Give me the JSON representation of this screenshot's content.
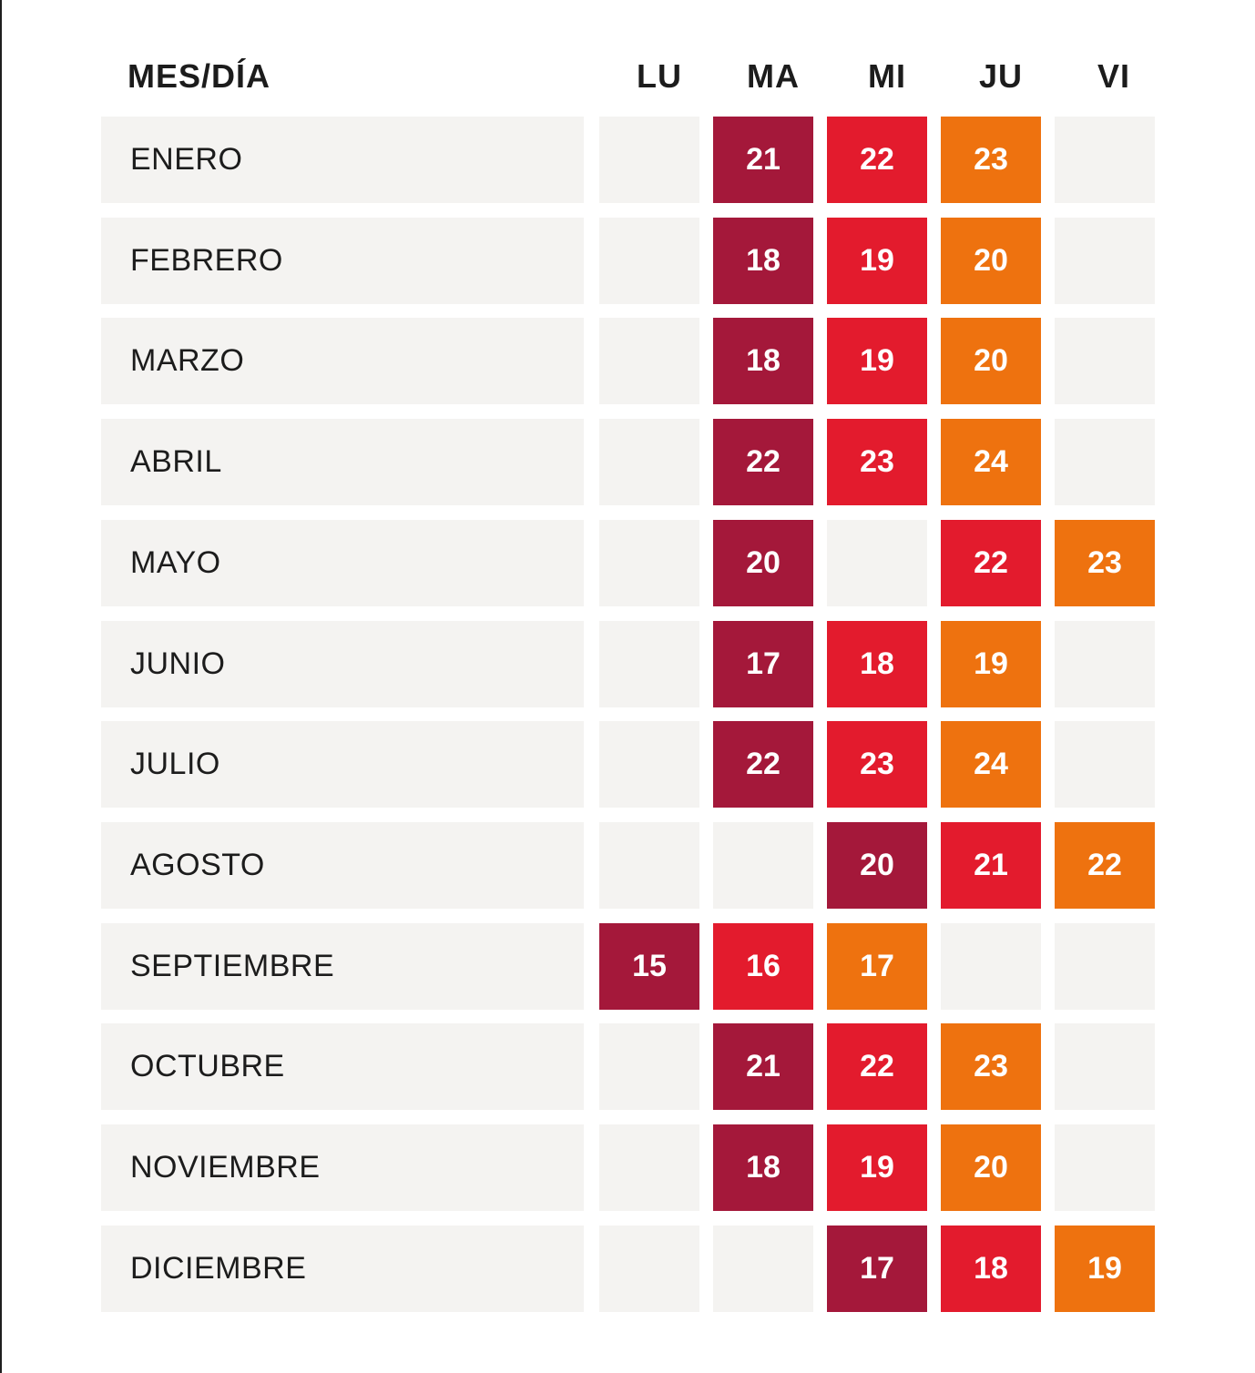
{
  "header": {
    "month_label": "MES/DÍA",
    "days": [
      "LU",
      "MA",
      "MI",
      "JU",
      "VI"
    ]
  },
  "colors": {
    "cell_background": "#f4f3f1",
    "first_day": "#a4183a",
    "second_day": "#e31b2d",
    "third_day": "#ee720f",
    "text_dark": "#1c1c1c"
  },
  "rows": [
    {
      "month": "ENERO",
      "cells": [
        {
          "v": ""
        },
        {
          "v": "21",
          "c": "dark"
        },
        {
          "v": "22",
          "c": "red"
        },
        {
          "v": "23",
          "c": "orange"
        },
        {
          "v": ""
        }
      ]
    },
    {
      "month": "FEBRERO",
      "cells": [
        {
          "v": ""
        },
        {
          "v": "18",
          "c": "dark"
        },
        {
          "v": "19",
          "c": "red"
        },
        {
          "v": "20",
          "c": "orange"
        },
        {
          "v": ""
        }
      ]
    },
    {
      "month": "MARZO",
      "cells": [
        {
          "v": ""
        },
        {
          "v": "18",
          "c": "dark"
        },
        {
          "v": "19",
          "c": "red"
        },
        {
          "v": "20",
          "c": "orange"
        },
        {
          "v": ""
        }
      ]
    },
    {
      "month": "ABRIL",
      "cells": [
        {
          "v": ""
        },
        {
          "v": "22",
          "c": "dark"
        },
        {
          "v": "23",
          "c": "red"
        },
        {
          "v": "24",
          "c": "orange"
        },
        {
          "v": ""
        }
      ]
    },
    {
      "month": "MAYO",
      "cells": [
        {
          "v": ""
        },
        {
          "v": "20",
          "c": "dark"
        },
        {
          "v": ""
        },
        {
          "v": "22",
          "c": "red"
        },
        {
          "v": "23",
          "c": "orange"
        }
      ]
    },
    {
      "month": "JUNIO",
      "cells": [
        {
          "v": ""
        },
        {
          "v": "17",
          "c": "dark"
        },
        {
          "v": "18",
          "c": "red"
        },
        {
          "v": "19",
          "c": "orange"
        },
        {
          "v": ""
        }
      ]
    },
    {
      "month": "JULIO",
      "cells": [
        {
          "v": ""
        },
        {
          "v": "22",
          "c": "dark"
        },
        {
          "v": "23",
          "c": "red"
        },
        {
          "v": "24",
          "c": "orange"
        },
        {
          "v": ""
        }
      ]
    },
    {
      "month": "AGOSTO",
      "cells": [
        {
          "v": ""
        },
        {
          "v": ""
        },
        {
          "v": "20",
          "c": "dark"
        },
        {
          "v": "21",
          "c": "red"
        },
        {
          "v": "22",
          "c": "orange"
        }
      ]
    },
    {
      "month": "SEPTIEMBRE",
      "cells": [
        {
          "v": "15",
          "c": "dark"
        },
        {
          "v": "16",
          "c": "red"
        },
        {
          "v": "17",
          "c": "orange"
        },
        {
          "v": ""
        },
        {
          "v": ""
        }
      ]
    },
    {
      "month": "OCTUBRE",
      "cells": [
        {
          "v": ""
        },
        {
          "v": "21",
          "c": "dark"
        },
        {
          "v": "22",
          "c": "red"
        },
        {
          "v": "23",
          "c": "orange"
        },
        {
          "v": ""
        }
      ]
    },
    {
      "month": "NOVIEMBRE",
      "cells": [
        {
          "v": ""
        },
        {
          "v": "18",
          "c": "dark"
        },
        {
          "v": "19",
          "c": "red"
        },
        {
          "v": "20",
          "c": "orange"
        },
        {
          "v": ""
        }
      ]
    },
    {
      "month": "DICIEMBRE",
      "cells": [
        {
          "v": ""
        },
        {
          "v": ""
        },
        {
          "v": "17",
          "c": "dark"
        },
        {
          "v": "18",
          "c": "red"
        },
        {
          "v": "19",
          "c": "orange"
        }
      ]
    }
  ]
}
